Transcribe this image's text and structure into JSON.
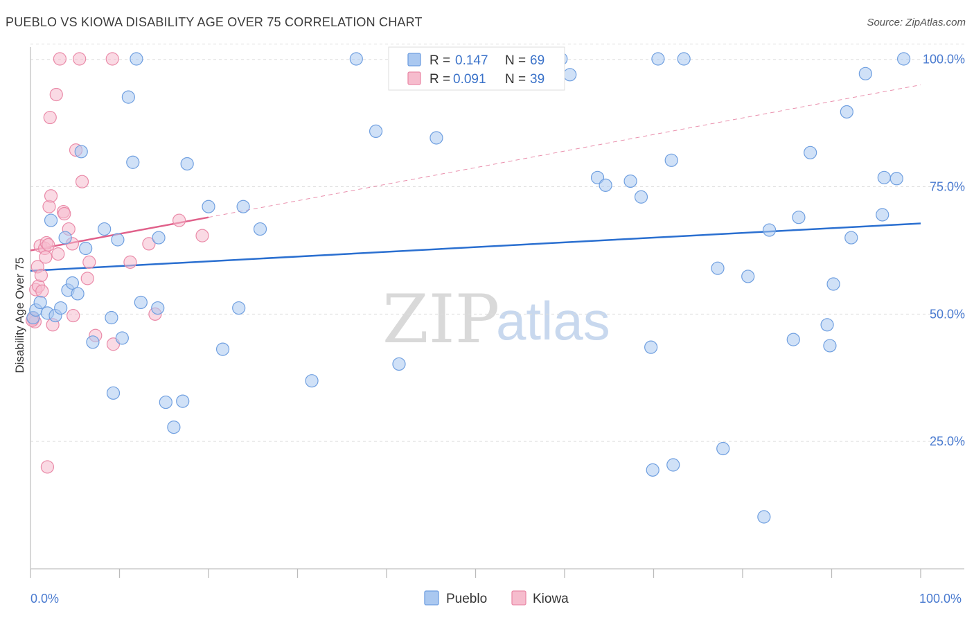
{
  "title": "PUEBLO VS KIOWA DISABILITY AGE OVER 75 CORRELATION CHART",
  "source": "Source: ZipAtlas.com",
  "watermark": {
    "zip": "ZIP",
    "atlas": "atlas"
  },
  "colors": {
    "pueblo_fill": "#aac8f0",
    "pueblo_stroke": "#6f9fe0",
    "pueblo_line": "#2a6fd0",
    "kiowa_fill": "#f6bccd",
    "kiowa_stroke": "#ea8aa8",
    "kiowa_line": "#e0608a",
    "grid": "#dddddd",
    "axis_label": "#4a7bd0"
  },
  "legend": {
    "rows": [
      {
        "r_label": "R = ",
        "r_value": "0.147",
        "n_label": "N = ",
        "n_value": "69"
      },
      {
        "r_label": "R = ",
        "r_value": "0.091",
        "n_label": "N = ",
        "n_value": "39"
      }
    ]
  },
  "bottom_legend": [
    "Pueblo",
    "Kiowa"
  ],
  "chart_data": {
    "type": "scatter",
    "title": "PUEBLO VS KIOWA DISABILITY AGE OVER 75 CORRELATION CHART",
    "xlabel": "",
    "ylabel": "Disability Age Over 75",
    "xlim": [
      0,
      100
    ],
    "ylim": [
      0,
      103
    ],
    "x_tick_labels": [
      "0.0%",
      "100.0%"
    ],
    "y_ticks": [
      25,
      50,
      75,
      100
    ],
    "y_tick_labels": [
      "25.0%",
      "50.0%",
      "75.0%",
      "100.0%"
    ],
    "series": [
      {
        "name": "Pueblo",
        "r": 0.147,
        "n": 69,
        "trend": {
          "x": [
            0,
            100
          ],
          "y": [
            58.5,
            67.8
          ],
          "style": "solid"
        },
        "points": [
          [
            0.3,
            49.3
          ],
          [
            0.6,
            50.8
          ],
          [
            1.1,
            52.3
          ],
          [
            1.9,
            50.2
          ],
          [
            2.3,
            68.4
          ],
          [
            2.8,
            49.7
          ],
          [
            3.4,
            51.2
          ],
          [
            3.9,
            65.0
          ],
          [
            4.2,
            54.7
          ],
          [
            4.7,
            56.1
          ],
          [
            5.3,
            54.0
          ],
          [
            5.7,
            81.9
          ],
          [
            6.2,
            62.9
          ],
          [
            7.0,
            44.5
          ],
          [
            8.3,
            66.7
          ],
          [
            9.1,
            49.3
          ],
          [
            9.3,
            34.5
          ],
          [
            9.8,
            64.6
          ],
          [
            10.3,
            45.3
          ],
          [
            11.0,
            92.6
          ],
          [
            11.5,
            79.8
          ],
          [
            11.9,
            100.1
          ],
          [
            12.4,
            52.3
          ],
          [
            14.3,
            51.2
          ],
          [
            14.4,
            65.0
          ],
          [
            15.2,
            32.7
          ],
          [
            16.1,
            27.8
          ],
          [
            17.1,
            32.9
          ],
          [
            17.6,
            79.5
          ],
          [
            20.0,
            71.1
          ],
          [
            21.6,
            43.1
          ],
          [
            23.4,
            51.2
          ],
          [
            23.9,
            71.1
          ],
          [
            25.8,
            66.7
          ],
          [
            31.6,
            36.9
          ],
          [
            36.6,
            100.1
          ],
          [
            38.8,
            85.9
          ],
          [
            41.4,
            40.2
          ],
          [
            45.6,
            84.6
          ],
          [
            59.6,
            100.1
          ],
          [
            60.6,
            97.0
          ],
          [
            63.7,
            76.8
          ],
          [
            64.6,
            75.3
          ],
          [
            67.4,
            76.1
          ],
          [
            68.6,
            73.0
          ],
          [
            69.7,
            43.5
          ],
          [
            69.9,
            19.4
          ],
          [
            70.5,
            100.1
          ],
          [
            72.0,
            80.2
          ],
          [
            72.2,
            20.4
          ],
          [
            73.4,
            100.1
          ],
          [
            77.2,
            59.0
          ],
          [
            77.8,
            23.6
          ],
          [
            80.6,
            57.4
          ],
          [
            82.4,
            10.2
          ],
          [
            83.0,
            66.5
          ],
          [
            85.7,
            45.0
          ],
          [
            86.3,
            69.0
          ],
          [
            87.6,
            81.7
          ],
          [
            89.5,
            47.9
          ],
          [
            89.8,
            43.8
          ],
          [
            90.2,
            55.9
          ],
          [
            91.7,
            89.7
          ],
          [
            92.2,
            65.0
          ],
          [
            93.8,
            97.2
          ],
          [
            95.7,
            69.5
          ],
          [
            95.9,
            76.8
          ],
          [
            97.3,
            76.6
          ],
          [
            98.1,
            100.1
          ]
        ]
      },
      {
        "name": "Kiowa",
        "r": 0.091,
        "n": 39,
        "trend": {
          "x": [
            0,
            20
          ],
          "y": [
            62.5,
            69.0
          ],
          "style": "solid",
          "extension": {
            "x": [
              20,
              100
            ],
            "y": [
              69.0,
              95.0
            ],
            "style": "dashed"
          }
        },
        "points": [
          [
            0.3,
            49.1
          ],
          [
            0.5,
            48.5
          ],
          [
            0.6,
            54.8
          ],
          [
            0.8,
            59.3
          ],
          [
            0.9,
            55.5
          ],
          [
            1.1,
            63.4
          ],
          [
            1.2,
            57.6
          ],
          [
            1.3,
            54.5
          ],
          [
            1.6,
            62.9
          ],
          [
            1.7,
            61.2
          ],
          [
            1.8,
            64.0
          ],
          [
            2.0,
            63.6
          ],
          [
            2.1,
            71.1
          ],
          [
            2.2,
            88.6
          ],
          [
            2.3,
            73.2
          ],
          [
            2.5,
            47.9
          ],
          [
            2.9,
            93.1
          ],
          [
            3.1,
            61.8
          ],
          [
            3.3,
            100.1
          ],
          [
            3.7,
            70.1
          ],
          [
            3.8,
            69.7
          ],
          [
            4.3,
            66.7
          ],
          [
            4.7,
            63.8
          ],
          [
            4.8,
            49.7
          ],
          [
            5.1,
            82.2
          ],
          [
            5.5,
            100.1
          ],
          [
            5.8,
            76.0
          ],
          [
            6.4,
            57.0
          ],
          [
            6.6,
            60.2
          ],
          [
            7.3,
            45.8
          ],
          [
            9.2,
            100.1
          ],
          [
            9.3,
            44.1
          ],
          [
            11.2,
            60.2
          ],
          [
            13.3,
            63.8
          ],
          [
            14.0,
            50.0
          ],
          [
            16.7,
            68.4
          ],
          [
            19.3,
            65.4
          ],
          [
            1.9,
            20.0
          ],
          [
            0.2,
            48.8
          ]
        ]
      }
    ]
  }
}
